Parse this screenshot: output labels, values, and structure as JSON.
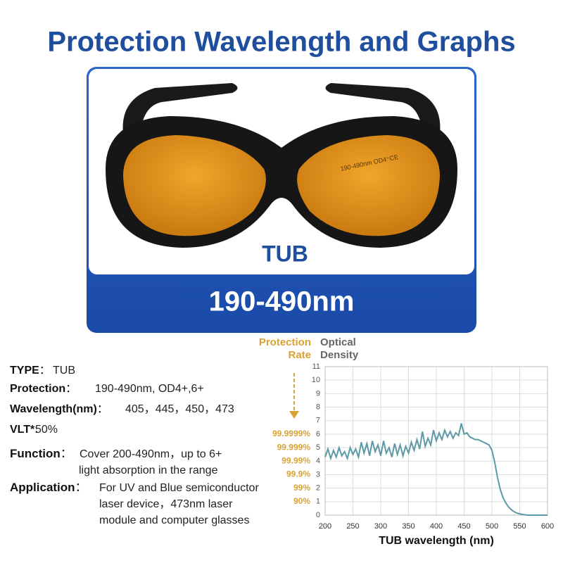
{
  "header": {
    "title": "Protection Wavelength and Graphs"
  },
  "product": {
    "model": "TUB",
    "range": "190-490nm",
    "lens_marking": "190-490nm OD4⁺CE"
  },
  "specs": [
    {
      "label": "TYPE",
      "sep": "：",
      "lines": [
        "TUB"
      ]
    },
    {
      "label": "Protection",
      "sep": "：",
      "lines": [
        "190-490nm, OD4+,6+"
      ]
    },
    {
      "label": "Wavelength(nm)",
      "sep": "：",
      "lines": [
        "405，445，450，473"
      ]
    },
    {
      "label": "VLT*",
      "sep": ":",
      "lines": [
        "50%"
      ]
    },
    {
      "label": "Function",
      "sep": "：",
      "lines": [
        "Cover 200-490nm，up to 6+",
        "light absorption in the range"
      ]
    },
    {
      "label": "Application",
      "sep": "：",
      "lines": [
        "For UV and Blue semiconductor",
        "laser device，473nm laser",
        "module and computer glasses"
      ]
    }
  ],
  "chart_data": {
    "type": "line",
    "x_label": "TUB wavelength (nm)",
    "left_header": [
      "Protection",
      "Rate"
    ],
    "right_header": [
      "Optical",
      "Density"
    ],
    "color": "#5b9aa6",
    "grid": true,
    "x": [
      200,
      205,
      210,
      215,
      220,
      225,
      230,
      235,
      240,
      245,
      250,
      255,
      260,
      265,
      270,
      275,
      280,
      285,
      290,
      295,
      300,
      305,
      310,
      315,
      320,
      325,
      330,
      335,
      340,
      345,
      350,
      355,
      360,
      365,
      370,
      375,
      380,
      385,
      390,
      395,
      400,
      405,
      410,
      415,
      420,
      425,
      430,
      435,
      440,
      445,
      450,
      455,
      460,
      465,
      470,
      475,
      480,
      485,
      490,
      495,
      500,
      505,
      510,
      515,
      520,
      525,
      530,
      535,
      540,
      545,
      550,
      555,
      560,
      565,
      570,
      575,
      580,
      585,
      590,
      595,
      600
    ],
    "values": [
      4.3,
      4.9,
      4.2,
      4.8,
      4.3,
      5.0,
      4.4,
      4.7,
      4.2,
      5.0,
      4.5,
      4.9,
      4.3,
      5.4,
      4.6,
      5.3,
      4.4,
      5.5,
      4.7,
      5.2,
      4.4,
      5.5,
      4.6,
      5.0,
      4.3,
      5.3,
      4.5,
      5.2,
      4.4,
      5.1,
      4.6,
      5.4,
      4.8,
      5.6,
      4.9,
      6.2,
      5.1,
      5.7,
      5.2,
      6.3,
      5.5,
      6.1,
      5.6,
      6.3,
      5.8,
      6.2,
      5.7,
      6.1,
      5.9,
      6.8,
      6.0,
      6.1,
      5.8,
      5.7,
      5.6,
      5.6,
      5.5,
      5.4,
      5.3,
      5.2,
      4.8,
      3.9,
      2.8,
      1.9,
      1.3,
      0.9,
      0.6,
      0.4,
      0.25,
      0.15,
      0.1,
      0.05,
      0.02,
      0,
      0,
      0,
      0,
      0,
      0,
      0,
      0
    ],
    "xlim": [
      200,
      600
    ],
    "xticks": [
      200,
      250,
      300,
      350,
      400,
      450,
      500,
      550,
      600
    ],
    "ylim": [
      0,
      11
    ],
    "yticks": [
      0,
      1,
      2,
      3,
      4,
      5,
      6,
      7,
      8,
      9,
      10,
      11
    ],
    "rate_ticks": [
      {
        "value": 6,
        "label": "99.9999%"
      },
      {
        "value": 5,
        "label": "99.999%"
      },
      {
        "value": 4,
        "label": "99.99%"
      },
      {
        "value": 3,
        "label": "99.9%"
      },
      {
        "value": 2,
        "label": "99%"
      },
      {
        "value": 1,
        "label": "90%"
      }
    ]
  }
}
